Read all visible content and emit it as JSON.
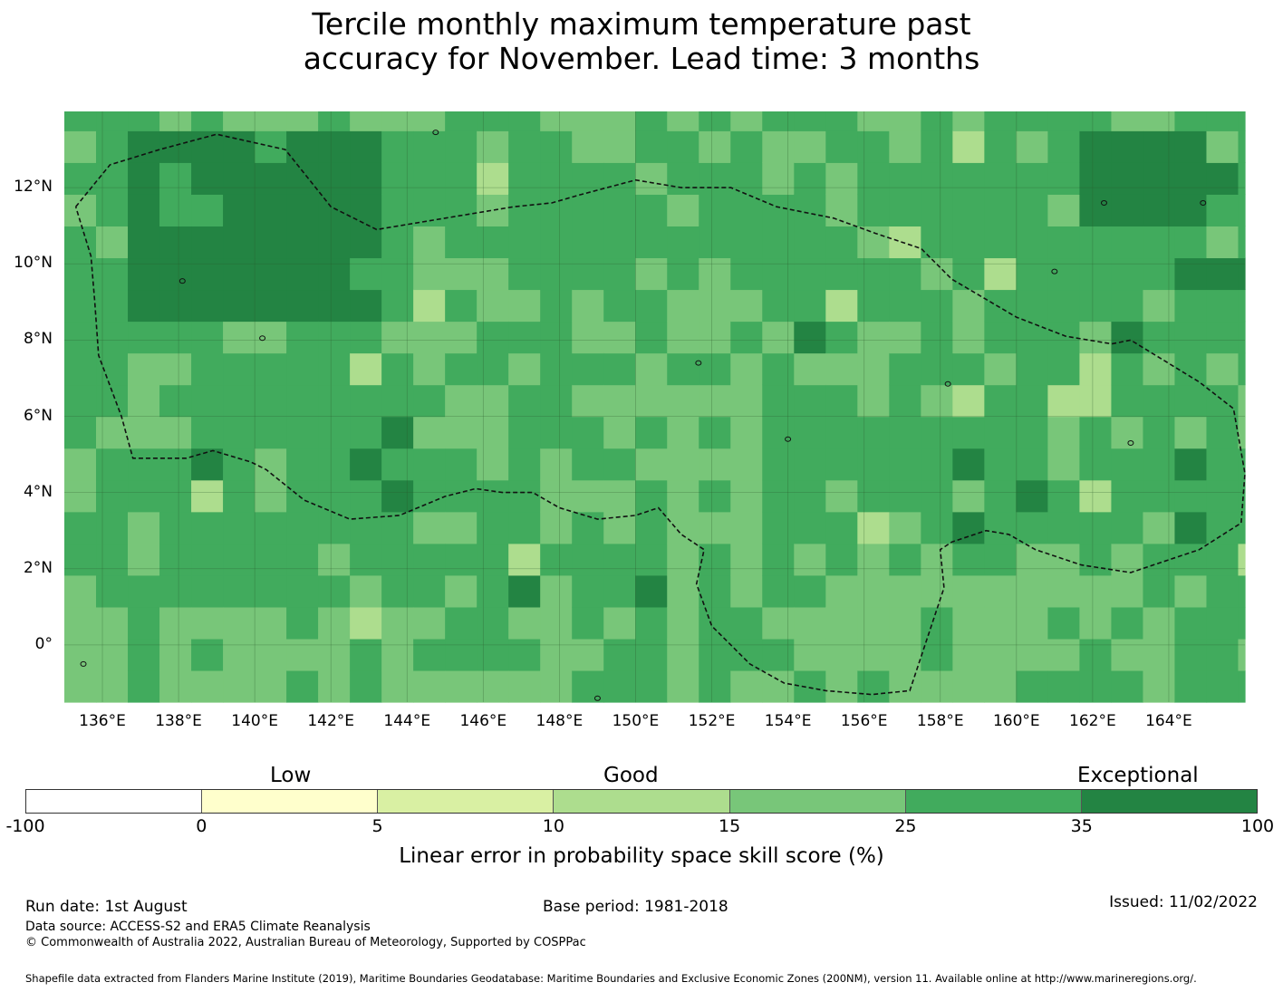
{
  "title_lines": [
    "Tercile monthly maximum temperature past",
    "accuracy for November. Lead time: 3 months"
  ],
  "map": {
    "lon_range": [
      135,
      166
    ],
    "lat_range": [
      -1.5,
      14
    ],
    "x_ticks": [
      "136°E",
      "138°E",
      "140°E",
      "142°E",
      "144°E",
      "146°E",
      "148°E",
      "150°E",
      "152°E",
      "154°E",
      "156°E",
      "158°E",
      "160°E",
      "162°E",
      "164°E"
    ],
    "y_ticks": [
      "12°N",
      "10°N",
      "8°N",
      "6°N",
      "4°N",
      "2°N",
      "0°"
    ],
    "cell_size_deg": 0.833,
    "skill_classes": [
      "<0",
      "0-5",
      "5-10",
      "10-15",
      "15-25",
      "25-35",
      ">35"
    ],
    "eez_outline": [
      [
        135.3,
        11.5
      ],
      [
        136.2,
        12.6
      ],
      [
        137.5,
        13.0
      ],
      [
        139.0,
        13.4
      ],
      [
        140.8,
        13.0
      ],
      [
        142.0,
        11.5
      ],
      [
        143.2,
        10.9
      ],
      [
        145.0,
        11.2
      ],
      [
        146.8,
        11.5
      ],
      [
        147.8,
        11.6
      ],
      [
        148.5,
        11.8
      ],
      [
        150.0,
        12.2
      ],
      [
        151.2,
        12.0
      ],
      [
        152.5,
        12.0
      ],
      [
        153.7,
        11.5
      ],
      [
        155.2,
        11.2
      ],
      [
        156.3,
        10.8
      ],
      [
        157.5,
        10.4
      ],
      [
        158.3,
        9.6
      ],
      [
        160.0,
        8.6
      ],
      [
        161.3,
        8.1
      ],
      [
        162.5,
        7.9
      ],
      [
        163.0,
        8.0
      ],
      [
        164.8,
        6.9
      ],
      [
        165.7,
        6.2
      ],
      [
        166.0,
        4.5
      ],
      [
        165.9,
        3.2
      ],
      [
        164.8,
        2.5
      ],
      [
        163.0,
        1.9
      ],
      [
        161.7,
        2.1
      ],
      [
        160.5,
        2.5
      ],
      [
        159.8,
        2.9
      ],
      [
        159.2,
        3.0
      ],
      [
        158.3,
        2.7
      ],
      [
        158.0,
        2.5
      ],
      [
        158.1,
        1.5
      ],
      [
        157.6,
        0.0
      ],
      [
        157.2,
        -1.2
      ],
      [
        156.2,
        -1.3
      ],
      [
        155.0,
        -1.2
      ],
      [
        153.9,
        -1.0
      ],
      [
        153.0,
        -0.5
      ],
      [
        152.0,
        0.5
      ],
      [
        151.6,
        1.6
      ],
      [
        151.8,
        2.5
      ],
      [
        151.2,
        2.9
      ],
      [
        150.6,
        3.6
      ],
      [
        150.0,
        3.4
      ],
      [
        149.0,
        3.3
      ],
      [
        148.0,
        3.6
      ],
      [
        147.3,
        4.0
      ],
      [
        146.5,
        4.0
      ],
      [
        145.8,
        4.1
      ],
      [
        145.0,
        3.9
      ],
      [
        143.8,
        3.4
      ],
      [
        142.5,
        3.3
      ],
      [
        141.3,
        3.8
      ],
      [
        140.3,
        4.6
      ],
      [
        139.9,
        4.8
      ],
      [
        138.9,
        5.1
      ],
      [
        138.2,
        4.9
      ],
      [
        137.5,
        4.9
      ],
      [
        136.8,
        4.9
      ],
      [
        136.5,
        6.0
      ],
      [
        135.9,
        7.6
      ],
      [
        135.8,
        9.0
      ],
      [
        135.7,
        10.2
      ],
      [
        135.3,
        11.5
      ]
    ],
    "islands": [
      [
        144.75,
        13.45
      ],
      [
        138.1,
        9.55
      ],
      [
        158.2,
        6.85
      ],
      [
        163.0,
        5.3
      ],
      [
        140.2,
        8.05
      ],
      [
        151.65,
        7.4
      ],
      [
        154.0,
        5.4
      ],
      [
        161.0,
        9.8
      ],
      [
        162.3,
        11.6
      ],
      [
        164.9,
        11.6
      ],
      [
        149.0,
        -1.4
      ],
      [
        135.5,
        -0.5
      ]
    ]
  },
  "colorbar": {
    "tick_labels": [
      "-100",
      "0",
      "5",
      "10",
      "15",
      "25",
      "35",
      "100"
    ],
    "segment_colors": [
      "#ffffff",
      "#ffffcc",
      "#d9f0a3",
      "#addd8e",
      "#78c679",
      "#41ab5d",
      "#238443"
    ],
    "category_labels": [
      "Low",
      "Good",
      "Exceptional"
    ],
    "label": "Linear error in probability space skill score (%)"
  },
  "footer": {
    "run_date": "Run date: 1st August",
    "base_period": "Base period: 1981-2018",
    "issued": "Issued: 11/02/2022",
    "data_source": "Data source: ACCESS-S2 and ERA5 Climate Reanalysis",
    "copyright": "© Commonwealth of Australia 2022, Australian Bureau of Meteorology, Supported by COSPPac",
    "shapefile": "Shapefile data extracted from Flanders Marine Institute (2019), Maritime Boundaries Geodatabase: Maritime Boundaries and Exclusive Economic Zones (200NM), version 11. Available online at http://www.marineregions.org/."
  }
}
